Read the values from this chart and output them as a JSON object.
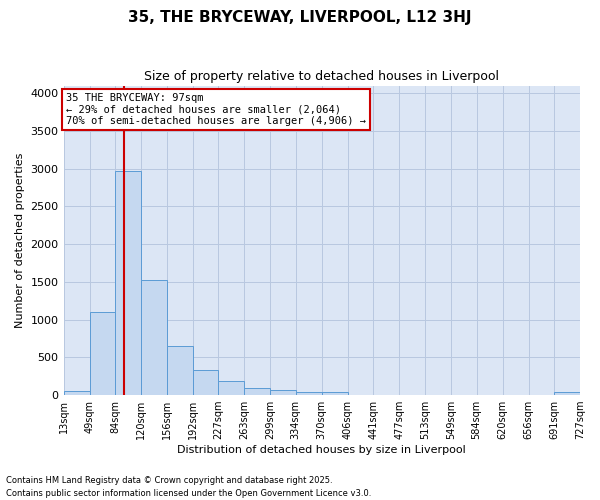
{
  "title": "35, THE BRYCEWAY, LIVERPOOL, L12 3HJ",
  "subtitle": "Size of property relative to detached houses in Liverpool",
  "xlabel": "Distribution of detached houses by size in Liverpool",
  "ylabel": "Number of detached properties",
  "bar_color": "#c5d8f0",
  "bar_edge_color": "#5b9bd5",
  "background_color": "#dce6f5",
  "grid_color": "#b8c8e0",
  "property_size": 97,
  "annotation_title": "35 THE BRYCEWAY: 97sqm",
  "annotation_line1": "← 29% of detached houses are smaller (2,064)",
  "annotation_line2": "70% of semi-detached houses are larger (4,906) →",
  "vline_color": "#cc0000",
  "annotation_box_color": "#cc0000",
  "footnote1": "Contains HM Land Registry data © Crown copyright and database right 2025.",
  "footnote2": "Contains public sector information licensed under the Open Government Licence v3.0.",
  "bin_edges": [
    13,
    49,
    84,
    120,
    156,
    192,
    227,
    263,
    299,
    334,
    370,
    406,
    441,
    477,
    513,
    549,
    584,
    620,
    656,
    691,
    727
  ],
  "counts": [
    50,
    1100,
    2970,
    1530,
    650,
    330,
    190,
    90,
    65,
    40,
    40,
    0,
    0,
    0,
    0,
    0,
    0,
    0,
    0,
    40
  ],
  "ylim": [
    0,
    4100
  ],
  "yticks": [
    0,
    500,
    1000,
    1500,
    2000,
    2500,
    3000,
    3500,
    4000
  ]
}
